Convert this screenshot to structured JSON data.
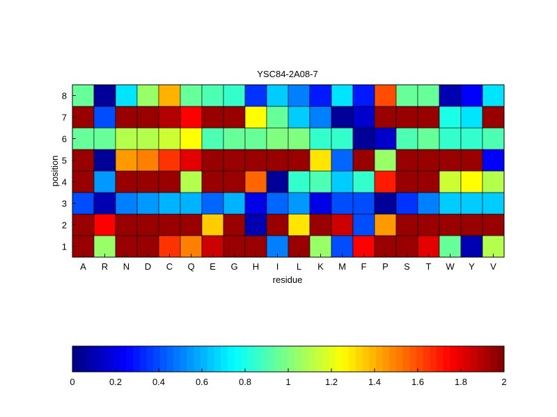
{
  "chart_data": {
    "type": "heatmap",
    "title": "YSC84-2A08-7",
    "xlabel": "residue",
    "ylabel": "position",
    "x_categories": [
      "A",
      "R",
      "N",
      "D",
      "C",
      "Q",
      "E",
      "G",
      "H",
      "I",
      "L",
      "K",
      "M",
      "F",
      "P",
      "S",
      "T",
      "W",
      "Y",
      "V"
    ],
    "y_categories": [
      "1",
      "2",
      "3",
      "4",
      "5",
      "6",
      "7",
      "8"
    ],
    "values": [
      [
        1.95,
        1.05,
        1.95,
        1.95,
        1.65,
        1.5,
        1.85,
        1.95,
        1.95,
        0.5,
        1.95,
        1.05,
        0.4,
        1.75,
        1.95,
        1.95,
        1.8,
        0.95,
        0.1,
        1.1
      ],
      [
        1.95,
        1.75,
        1.95,
        1.95,
        1.95,
        1.95,
        1.35,
        1.95,
        0.1,
        1.95,
        1.3,
        1.95,
        1.85,
        0.4,
        1.45,
        1.95,
        1.95,
        1.95,
        1.95,
        1.95
      ],
      [
        0.4,
        0.1,
        0.5,
        0.55,
        0.6,
        0.6,
        0.45,
        0.6,
        0.2,
        0.45,
        0.55,
        0.2,
        0.4,
        0.4,
        0.05,
        0.35,
        0.5,
        0.65,
        0.65,
        0.65
      ],
      [
        1.95,
        0.55,
        1.95,
        1.95,
        1.95,
        1.1,
        1.95,
        1.95,
        1.55,
        0.05,
        0.85,
        0.9,
        0.65,
        0.85,
        1.7,
        1.95,
        1.95,
        1.15,
        1.25,
        1.1
      ],
      [
        1.95,
        0.05,
        1.45,
        1.5,
        1.65,
        1.8,
        1.95,
        1.95,
        1.95,
        1.95,
        1.95,
        1.3,
        0.45,
        1.95,
        1.05,
        1.95,
        1.95,
        1.95,
        1.95,
        0.25
      ],
      [
        0.95,
        0.95,
        1.1,
        1.1,
        1.15,
        1.25,
        0.9,
        0.95,
        0.95,
        1.0,
        1.0,
        0.85,
        0.85,
        0.05,
        0.15,
        0.9,
        0.95,
        0.85,
        0.85,
        0.9
      ],
      [
        1.95,
        0.4,
        1.95,
        1.95,
        1.9,
        1.75,
        1.95,
        1.95,
        1.25,
        0.95,
        0.65,
        0.5,
        0.05,
        0.15,
        1.95,
        1.95,
        1.95,
        0.8,
        0.7,
        1.95
      ],
      [
        0.95,
        0.05,
        0.7,
        1.05,
        1.4,
        0.95,
        0.9,
        0.85,
        0.35,
        0.65,
        0.5,
        0.3,
        0.7,
        0.3,
        1.6,
        0.95,
        0.95,
        0.1,
        0.25,
        0.7
      ]
    ],
    "colormap": "jet",
    "clim": [
      0,
      2
    ],
    "colorbar": {
      "position": "bottom",
      "ticks": [
        0,
        0.2,
        0.4,
        0.6,
        0.8,
        1,
        1.2,
        1.4,
        1.6,
        1.8,
        2
      ],
      "tick_labels": [
        "0",
        "0.2",
        "0.4",
        "0.6",
        "0.8",
        "1",
        "1.2",
        "1.4",
        "1.6",
        "1.8",
        "2"
      ]
    }
  }
}
